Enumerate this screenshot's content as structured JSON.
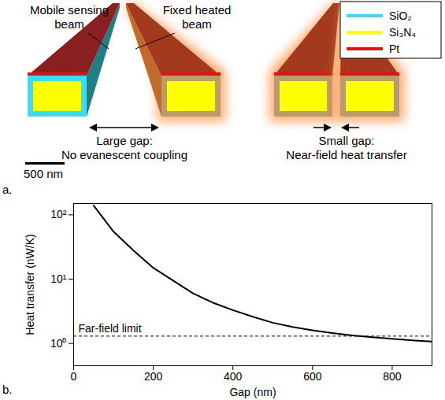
{
  "diagram": {
    "panel_label": "a.",
    "legend": [
      {
        "label": "SiO₂",
        "color": "#33dfff"
      },
      {
        "label": "Si₃N₄",
        "color": "#ffff00"
      },
      {
        "label": "Pt",
        "color": "#e81010"
      }
    ],
    "mobile_beam_label": "Mobile sensing beam",
    "fixed_beam_label": "Fixed heated beam",
    "large_gap_label": [
      "Large gap:",
      "No evanescent coupling"
    ],
    "small_gap_label": [
      "Small gap:",
      "Near-field heat transfer"
    ],
    "scale_bar_label": "500 nm"
  },
  "chart_data": {
    "type": "line",
    "panel_label": "b.",
    "x_label": "Gap (nm)",
    "y_label": "Heat transfer (nW/K)",
    "x": [
      50,
      100,
      150,
      200,
      250,
      300,
      350,
      400,
      450,
      500,
      550,
      600,
      650,
      700,
      750,
      800,
      850,
      900
    ],
    "values": [
      140,
      55,
      28,
      15,
      9.5,
      6,
      4.3,
      3.3,
      2.6,
      2.1,
      1.8,
      1.6,
      1.45,
      1.33,
      1.25,
      1.18,
      1.12,
      1.07
    ],
    "color": "#000000",
    "annotations": [
      {
        "text": "Far-field limit",
        "y": 1.3,
        "line_style": "dashed"
      }
    ],
    "log": "y",
    "grid": false,
    "xlim": [
      0,
      900
    ],
    "xticks": [
      0,
      200,
      400,
      600,
      800
    ],
    "ylim": [
      0.45,
      150
    ],
    "yticks": [
      {
        "value": 1,
        "label": "10⁰"
      },
      {
        "value": 10,
        "label": "10¹"
      },
      {
        "value": 100,
        "label": "10²"
      }
    ]
  }
}
